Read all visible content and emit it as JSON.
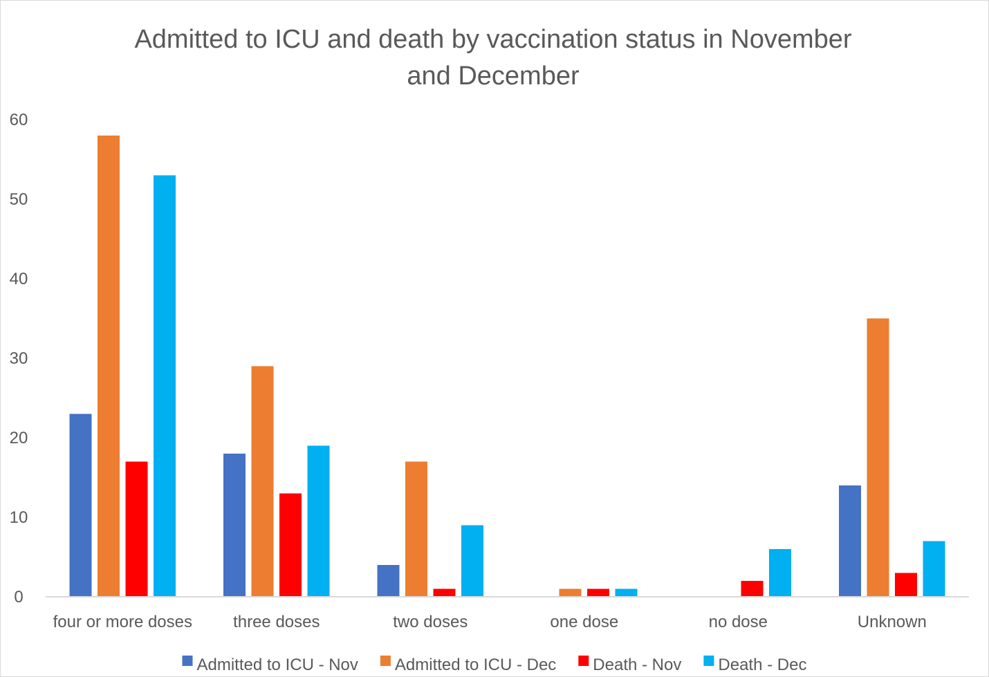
{
  "chart_data": {
    "type": "bar",
    "title": "Admitted to ICU and death by vaccination status in November and December",
    "title_lines": [
      "Admitted to ICU and death by vaccination status in November",
      "and December"
    ],
    "xlabel": "",
    "ylabel": "",
    "ylim": [
      0,
      60
    ],
    "yticks": [
      0,
      10,
      20,
      30,
      40,
      50,
      60
    ],
    "grid": false,
    "legend_position": "bottom",
    "categories": [
      "four or more doses",
      "three doses",
      "two doses",
      "one dose",
      "no dose",
      "Unknown"
    ],
    "series": [
      {
        "name": "Admitted to ICU - Nov",
        "color": "#4472c4",
        "values": [
          23,
          18,
          4,
          0,
          0,
          14
        ]
      },
      {
        "name": "Admitted to ICU - Dec",
        "color": "#ed7d31",
        "values": [
          58,
          29,
          17,
          1,
          0,
          35
        ]
      },
      {
        "name": "Death - Nov",
        "color": "#ff0000",
        "values": [
          17,
          13,
          1,
          1,
          2,
          3
        ]
      },
      {
        "name": "Death - Dec",
        "color": "#00b0f0",
        "values": [
          53,
          19,
          9,
          1,
          6,
          7
        ]
      }
    ]
  }
}
